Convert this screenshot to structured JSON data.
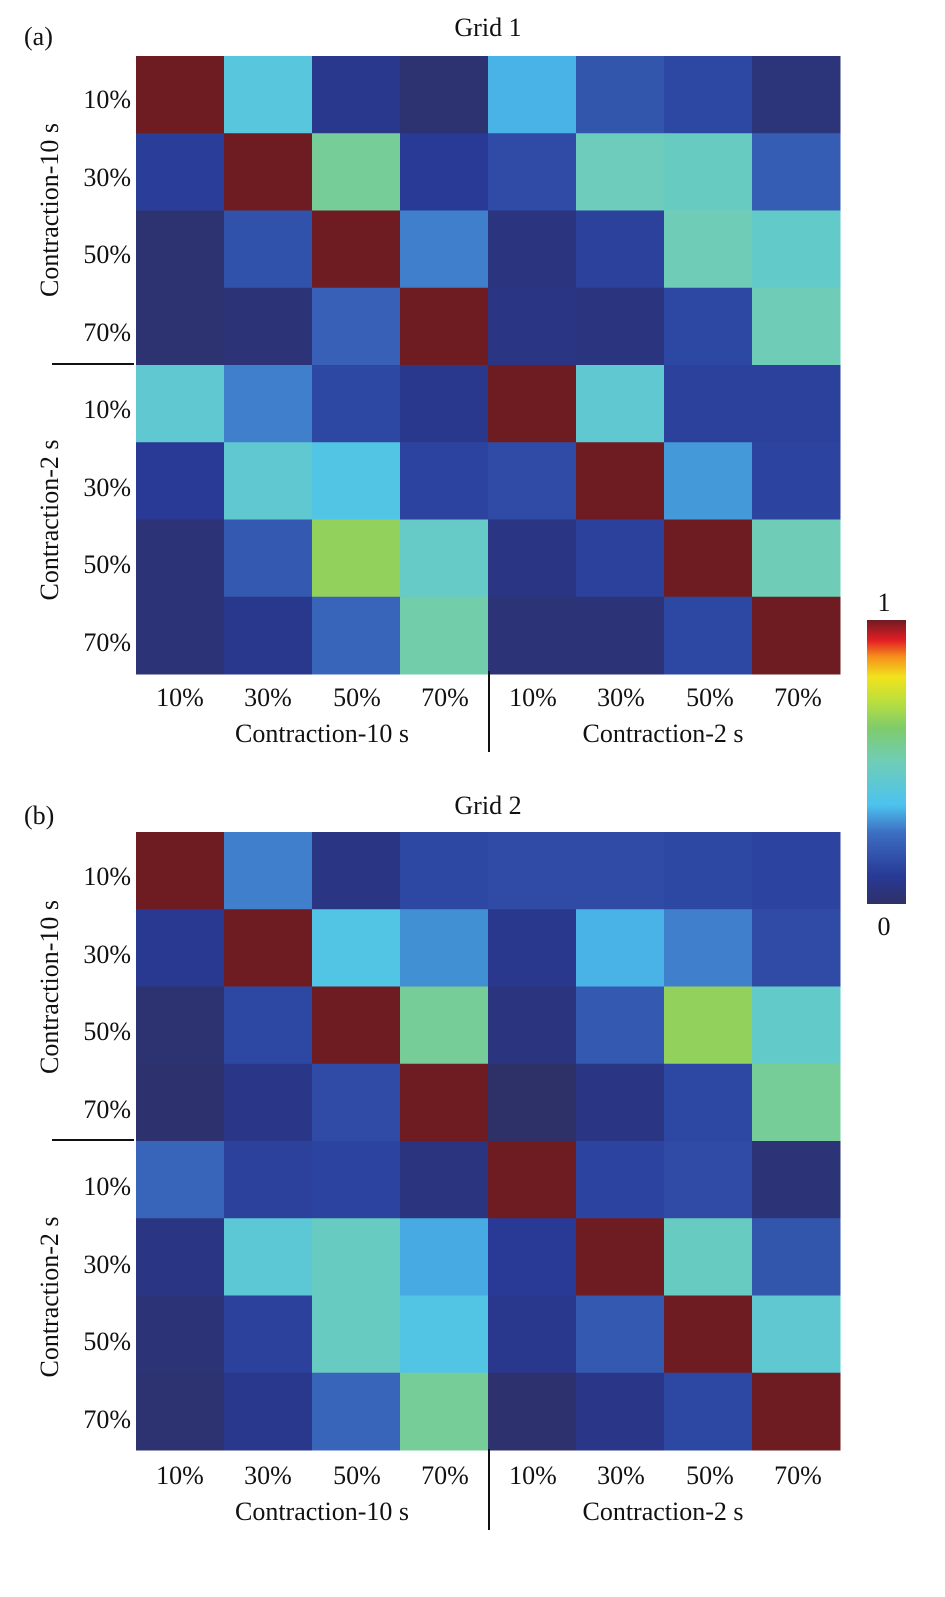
{
  "chart_data": [
    {
      "type": "heatmap",
      "panel_label": "(a)",
      "title": "Grid 1",
      "tick_labels": [
        "10%",
        "30%",
        "50%",
        "70%",
        "10%",
        "30%",
        "50%",
        "70%"
      ],
      "x_groups": [
        "Contraction-10 s",
        "Contraction-2 s"
      ],
      "y_groups": [
        "Contraction-10 s",
        "Contraction-2 s"
      ],
      "values": [
        [
          1.0,
          0.4,
          0.08,
          0.02,
          0.33,
          0.18,
          0.14,
          0.04
        ],
        [
          0.11,
          1.0,
          0.55,
          0.1,
          0.15,
          0.49,
          0.47,
          0.2
        ],
        [
          0.02,
          0.17,
          1.0,
          0.27,
          0.05,
          0.12,
          0.5,
          0.45
        ],
        [
          0.02,
          0.03,
          0.21,
          1.0,
          0.06,
          0.05,
          0.14,
          0.5
        ],
        [
          0.43,
          0.27,
          0.14,
          0.08,
          1.0,
          0.43,
          0.12,
          0.12
        ],
        [
          0.1,
          0.43,
          0.38,
          0.13,
          0.15,
          1.0,
          0.3,
          0.13
        ],
        [
          0.03,
          0.19,
          0.65,
          0.46,
          0.06,
          0.12,
          1.0,
          0.5
        ],
        [
          0.03,
          0.08,
          0.22,
          0.52,
          0.03,
          0.03,
          0.14,
          1.0
        ]
      ]
    },
    {
      "type": "heatmap",
      "panel_label": "(b)",
      "title": "Grid 2",
      "tick_labels": [
        "10%",
        "30%",
        "50%",
        "70%",
        "10%",
        "30%",
        "50%",
        "70%"
      ],
      "x_groups": [
        "Contraction-10 s",
        "Contraction-2 s"
      ],
      "y_groups": [
        "Contraction-10 s",
        "Contraction-2 s"
      ],
      "values": [
        [
          1.0,
          0.27,
          0.06,
          0.14,
          0.15,
          0.15,
          0.14,
          0.13
        ],
        [
          0.09,
          1.0,
          0.38,
          0.29,
          0.08,
          0.33,
          0.27,
          0.15
        ],
        [
          0.02,
          0.14,
          1.0,
          0.55,
          0.05,
          0.19,
          0.65,
          0.45
        ],
        [
          0.01,
          0.07,
          0.15,
          1.0,
          0.0,
          0.06,
          0.14,
          0.55
        ],
        [
          0.22,
          0.12,
          0.13,
          0.05,
          1.0,
          0.13,
          0.15,
          0.03
        ],
        [
          0.06,
          0.42,
          0.47,
          0.32,
          0.1,
          1.0,
          0.47,
          0.18
        ],
        [
          0.03,
          0.12,
          0.47,
          0.38,
          0.08,
          0.19,
          1.0,
          0.43
        ],
        [
          0.02,
          0.08,
          0.22,
          0.55,
          0.01,
          0.07,
          0.14,
          1.0
        ]
      ]
    }
  ],
  "colorbar": {
    "max_label": "1",
    "min_label": "0",
    "colormap": "jet"
  }
}
